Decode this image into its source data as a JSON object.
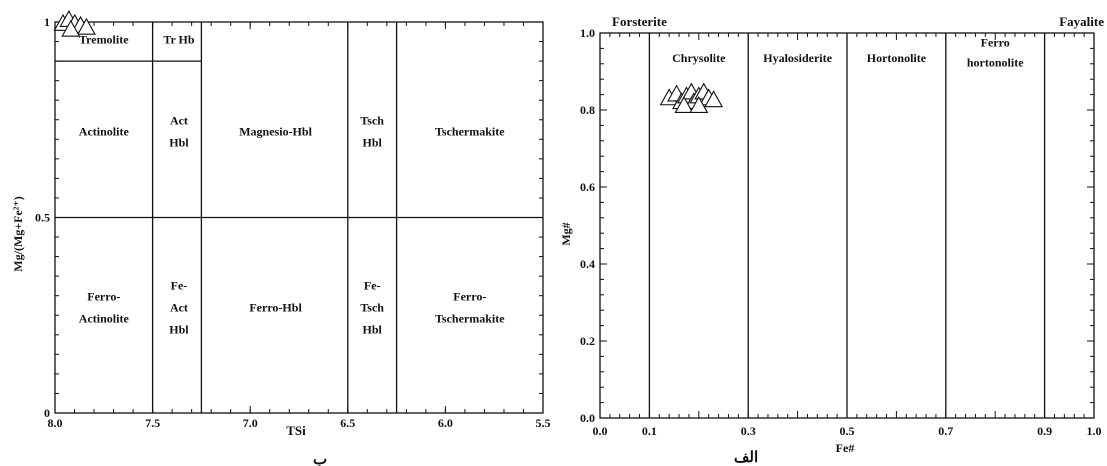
{
  "chart_data": [
    {
      "type": "scatter",
      "caption": "ب",
      "xlabel": "TSi",
      "ylabel": "Mg/(Mg+Fe²⁺)",
      "xlim": [
        8.0,
        5.5
      ],
      "ylim": [
        0,
        1
      ],
      "x_ticks": [
        "8.0",
        "7.5",
        "7.0",
        "6.5",
        "6.0",
        "5.5"
      ],
      "y_ticks": [
        "0",
        "0.5",
        "1"
      ],
      "fields": [
        {
          "lines": [
            "Tremolite"
          ],
          "x": 7.75,
          "y": 0.955
        },
        {
          "lines": [
            "Tr Hb"
          ],
          "x": 7.365,
          "y": 0.955
        },
        {
          "lines": [
            "Actinolite"
          ],
          "x": 7.75,
          "y": 0.72
        },
        {
          "lines": [
            "Act",
            "Hbl"
          ],
          "x": 7.365,
          "y": 0.72
        },
        {
          "lines": [
            "Magnesio-Hbl"
          ],
          "x": 6.87,
          "y": 0.72
        },
        {
          "lines": [
            "Tsch",
            "Hbl"
          ],
          "x": 6.375,
          "y": 0.72
        },
        {
          "lines": [
            "Tschermakite"
          ],
          "x": 5.875,
          "y": 0.72
        },
        {
          "lines": [
            "Ferro-",
            "Actinolite"
          ],
          "x": 7.75,
          "y": 0.27
        },
        {
          "lines": [
            "Fe-",
            "Act",
            "Hbl"
          ],
          "x": 7.365,
          "y": 0.27
        },
        {
          "lines": [
            "Ferro-Hbl"
          ],
          "x": 6.87,
          "y": 0.27
        },
        {
          "lines": [
            "Fe-",
            "Tsch",
            "Hbl"
          ],
          "x": 6.375,
          "y": 0.27
        },
        {
          "lines": [
            "Ferro-",
            "Tschermakite"
          ],
          "x": 5.875,
          "y": 0.27
        }
      ],
      "vertical_boundaries": [
        7.5,
        7.25,
        6.5,
        6.25
      ],
      "horizontal_boundaries": [
        0.5
      ],
      "tremolite_boundary_y": 0.9,
      "points": [
        {
          "x": 8.0,
          "y": 1.0
        },
        {
          "x": 7.97,
          "y": 1.01
        },
        {
          "x": 7.94,
          "y": 1.0
        },
        {
          "x": 7.91,
          "y": 0.995
        },
        {
          "x": 7.88,
          "y": 0.99
        },
        {
          "x": 7.96,
          "y": 0.985
        }
      ]
    },
    {
      "type": "scatter",
      "caption": "الف",
      "xlabel": "Fe#",
      "ylabel": "Mg#",
      "xlim": [
        0.0,
        1.0
      ],
      "ylim": [
        0.0,
        1.0
      ],
      "x_ticks": [
        "0.0",
        "0.1",
        "0.3",
        "0.5",
        "0.7",
        "0.9",
        "1.0"
      ],
      "y_ticks": [
        "0.0",
        "0.2",
        "0.4",
        "0.6",
        "0.8",
        "1.0"
      ],
      "top_labels": [
        "Forsterite",
        "Fayalite"
      ],
      "vertical_boundaries": [
        0.1,
        0.3,
        0.5,
        0.7,
        0.9
      ],
      "fields": [
        {
          "lines": [
            "Chrysolite"
          ],
          "x": 0.2,
          "y": 0.935
        },
        {
          "lines": [
            "Hyalosiderite"
          ],
          "x": 0.4,
          "y": 0.935
        },
        {
          "lines": [
            "Hortonolite"
          ],
          "x": 0.6,
          "y": 0.935
        },
        {
          "lines": [
            "Ferro",
            "hortonolite"
          ],
          "x": 0.8,
          "y": 0.95
        }
      ],
      "points": [
        {
          "x": 0.14,
          "y": 0.83
        },
        {
          "x": 0.155,
          "y": 0.84
        },
        {
          "x": 0.165,
          "y": 0.82
        },
        {
          "x": 0.175,
          "y": 0.835
        },
        {
          "x": 0.185,
          "y": 0.845
        },
        {
          "x": 0.19,
          "y": 0.82
        },
        {
          "x": 0.2,
          "y": 0.835
        },
        {
          "x": 0.21,
          "y": 0.845
        },
        {
          "x": 0.22,
          "y": 0.83
        },
        {
          "x": 0.23,
          "y": 0.825
        },
        {
          "x": 0.17,
          "y": 0.81
        },
        {
          "x": 0.2,
          "y": 0.81
        }
      ]
    }
  ]
}
